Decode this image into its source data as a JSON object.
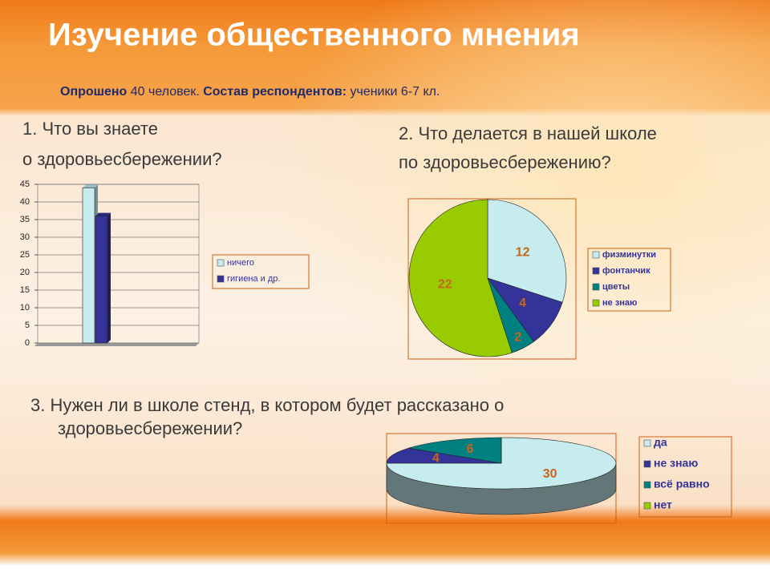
{
  "title": "Изучение общественного мнения",
  "subtitle": [
    {
      "text": "Опрошено",
      "bold": true
    },
    {
      "text": " 40 человек. ",
      "bold": false
    },
    {
      "text": "Состав респондентов:",
      "bold": true
    },
    {
      "text": " ученики 6-7 кл.",
      "bold": false
    }
  ],
  "chart_data": [
    {
      "type": "bar",
      "title": [
        "1.    Что вы знаете",
        "о здоровьесбережении?"
      ],
      "categories": [
        null
      ],
      "series": [
        {
          "name": "ничего",
          "color": "#c6ecf0",
          "values": [
            44
          ]
        },
        {
          "name": "гигиена и др.",
          "color": "#333399",
          "values": [
            36
          ]
        }
      ],
      "ylim": [
        0,
        45
      ],
      "yticks": [
        0,
        5,
        10,
        15,
        20,
        25,
        30,
        35,
        40,
        45
      ],
      "grid": true,
      "legend": "right"
    },
    {
      "type": "pie",
      "title": [
        "2. Что делается в нашей школе",
        "по здоровьесбережению?"
      ],
      "categories": [
        "физминутки",
        "фонтанчик",
        "цветы",
        "не знаю"
      ],
      "values": [
        12,
        4,
        2,
        22
      ],
      "colors": [
        "#c6ecf0",
        "#333399",
        "#008080",
        "#99cc00"
      ],
      "legend": "right"
    },
    {
      "type": "pie",
      "3d": true,
      "title": [
        "3. Нужен ли в школе стенд, в котором будет рассказано о",
        "здоровьесбережении?"
      ],
      "categories": [
        "да",
        "не знаю",
        "всё равно",
        "нет"
      ],
      "values": [
        30,
        4,
        6,
        0
      ],
      "colors": [
        "#c6ecf0",
        "#333399",
        "#008080",
        "#99cc00"
      ],
      "legend": "right"
    }
  ]
}
